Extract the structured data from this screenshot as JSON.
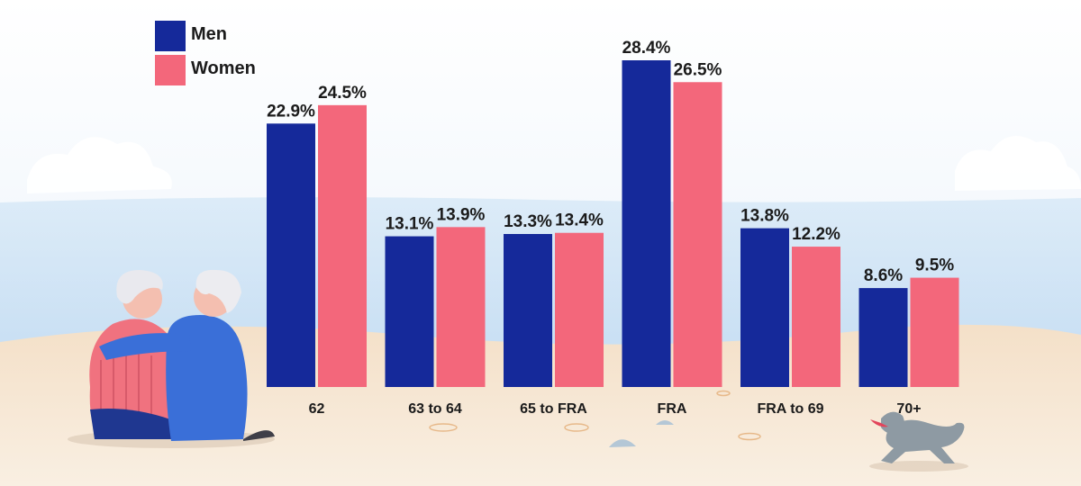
{
  "chart_data": {
    "type": "bar",
    "title": "",
    "xlabel": "",
    "ylabel": "",
    "categories": [
      "62",
      "63 to 64",
      "65 to FRA",
      "FRA",
      "FRA to 69",
      "70+"
    ],
    "series": [
      {
        "name": "Men",
        "color": "#15299a",
        "values": [
          22.9,
          13.1,
          13.3,
          28.4,
          13.8,
          8.6
        ],
        "labels": [
          "22.9%",
          "13.1%",
          "13.3%",
          "28.4%",
          "13.8%",
          "8.6%"
        ]
      },
      {
        "name": "Women",
        "color": "#f3677b",
        "values": [
          24.5,
          13.9,
          13.4,
          26.5,
          12.2,
          9.5
        ],
        "labels": [
          "24.5%",
          "13.9%",
          "13.4%",
          "26.5%",
          "12.2%",
          "9.5%"
        ]
      }
    ],
    "ylim": [
      0,
      28.4
    ],
    "grid": false,
    "legend": "top-left"
  }
}
